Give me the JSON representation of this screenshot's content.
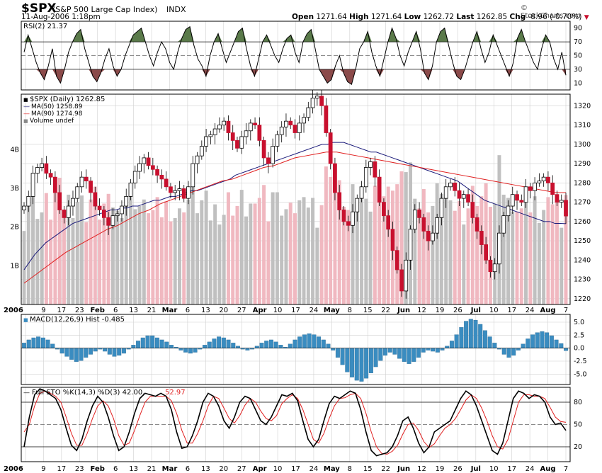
{
  "header": {
    "symbol": "$SPX",
    "name": "(S&P 500 Large Cap Index)",
    "exchange": "INDX",
    "date": "11-Aug-2006 1:18pm",
    "credit": "© StockCharts.com",
    "open_label": "Open",
    "open": "1271.64",
    "high_label": "High",
    "high": "1271.64",
    "low_label": "Low",
    "low": "1262.72",
    "last_label": "Last",
    "last": "1262.85",
    "chg_label": "Chg",
    "chg": "-8.96 (-0.70%)",
    "chg_arrow": "▼"
  },
  "colors": {
    "up": "#000000",
    "down": "#c8102e",
    "ma50": "#1a1a7a",
    "ma90": "#e02020",
    "rsi_high": "#5a7a4a",
    "rsi_low": "#8b4a4a",
    "macd_hist": "#3a8cc0",
    "vol_gray": "#c0c0c0",
    "vol_pink": "#f0b8c0",
    "grid": "#d0d0d0"
  },
  "chart_data": [
    {
      "type": "line",
      "name": "rsi",
      "title": "RSI(2) 21.37",
      "yticks": [
        10,
        30,
        50,
        70,
        90
      ],
      "ylim": [
        0,
        100
      ],
      "values": [
        55,
        80,
        60,
        40,
        25,
        15,
        35,
        60,
        20,
        10,
        30,
        55,
        70,
        82,
        88,
        60,
        40,
        20,
        12,
        25,
        45,
        60,
        35,
        20,
        30,
        50,
        65,
        80,
        85,
        90,
        70,
        50,
        35,
        55,
        70,
        60,
        40,
        30,
        55,
        75,
        88,
        92,
        65,
        45,
        35,
        20,
        50,
        70,
        82,
        60,
        40,
        55,
        70,
        85,
        90,
        60,
        35,
        20,
        45,
        70,
        80,
        65,
        50,
        40,
        60,
        75,
        80,
        55,
        40,
        70,
        82,
        88,
        60,
        30,
        20,
        10,
        15,
        35,
        50,
        25,
        12,
        8,
        30,
        60,
        70,
        85,
        55,
        35,
        20,
        45,
        70,
        90,
        75,
        50,
        35,
        55,
        70,
        85,
        60,
        25,
        15,
        35,
        70,
        85,
        90,
        65,
        40,
        20,
        15,
        30,
        50,
        70,
        85,
        60,
        40,
        55,
        80,
        65,
        50,
        35,
        20,
        40,
        75,
        88,
        70,
        55,
        40,
        30,
        60,
        80,
        70,
        45,
        30,
        55,
        21.37
      ]
    },
    {
      "type": "line",
      "name": "price",
      "title": "$SPX (Daily) 1262.85",
      "series_labels": [
        "MA(50) 1258.89",
        "MA(90) 1274.98",
        "Volume undef"
      ],
      "yticks": [
        1220,
        1230,
        1240,
        1250,
        1260,
        1270,
        1280,
        1290,
        1300,
        1310,
        1320
      ],
      "ylim": [
        1217,
        1326
      ],
      "volume_ticks": [
        "1B",
        "2B",
        "3B",
        "4B"
      ],
      "volume_lim": [
        0,
        5
      ],
      "xticks": [
        "2006",
        "9",
        "17",
        "23",
        "Feb",
        "6",
        "13",
        "21",
        "Mar",
        "6",
        "13",
        "20",
        "27",
        "Apr",
        "10",
        "17",
        "24",
        "May",
        "8",
        "15",
        "22",
        "Jun",
        "12",
        "19",
        "26",
        "Jul",
        "10",
        "17",
        "24",
        "Aug",
        "7"
      ],
      "close": [
        1268,
        1273,
        1285,
        1288,
        1290,
        1285,
        1283,
        1275,
        1266,
        1262,
        1268,
        1272,
        1278,
        1283,
        1281,
        1275,
        1268,
        1266,
        1262,
        1258,
        1263,
        1264,
        1268,
        1273,
        1280,
        1286,
        1290,
        1293,
        1289,
        1287,
        1284,
        1282,
        1278,
        1275,
        1276,
        1277,
        1272,
        1278,
        1290,
        1294,
        1299,
        1304,
        1305,
        1308,
        1310,
        1312,
        1306,
        1302,
        1298,
        1304,
        1307,
        1311,
        1310,
        1302,
        1293,
        1290,
        1299,
        1305,
        1309,
        1312,
        1310,
        1306,
        1311,
        1314,
        1319,
        1324,
        1325,
        1320,
        1306,
        1290,
        1275,
        1266,
        1260,
        1258,
        1265,
        1272,
        1278,
        1288,
        1291,
        1283,
        1270,
        1263,
        1256,
        1245,
        1235,
        1224,
        1240,
        1256,
        1266,
        1262,
        1255,
        1250,
        1254,
        1262,
        1272,
        1278,
        1280,
        1276,
        1272,
        1274,
        1270,
        1262,
        1255,
        1248,
        1240,
        1234,
        1238,
        1254,
        1263,
        1268,
        1274,
        1271,
        1270,
        1278,
        1276,
        1280,
        1281,
        1283,
        1280,
        1274,
        1270,
        1271,
        1262.85
      ],
      "ma50": [
        1235,
        1239,
        1243,
        1246,
        1249,
        1251,
        1253,
        1255,
        1257,
        1259,
        1260,
        1261,
        1262,
        1263,
        1264,
        1265,
        1266,
        1266,
        1267,
        1267,
        1268,
        1268,
        1269,
        1270,
        1271,
        1271,
        1272,
        1273,
        1273,
        1274,
        1275,
        1276,
        1276,
        1277,
        1278,
        1279,
        1280,
        1281,
        1282,
        1284,
        1285,
        1286,
        1287,
        1288,
        1289,
        1290,
        1291,
        1292,
        1293,
        1294,
        1295,
        1296,
        1297,
        1298,
        1299,
        1300,
        1300,
        1301,
        1301,
        1301,
        1300,
        1299,
        1298,
        1297,
        1296,
        1296,
        1295,
        1294,
        1293,
        1292,
        1291,
        1290,
        1289,
        1288,
        1287,
        1286,
        1285,
        1284,
        1283,
        1282,
        1281,
        1279,
        1277,
        1275,
        1273,
        1271,
        1270,
        1269,
        1268,
        1267,
        1266,
        1265,
        1264,
        1263,
        1262,
        1261,
        1260,
        1260,
        1259,
        1259,
        1258.89
      ],
      "ma90": [
        1228,
        1232,
        1236,
        1240,
        1244,
        1247,
        1250,
        1253,
        1256,
        1258,
        1261,
        1264,
        1266,
        1269,
        1271,
        1273,
        1275,
        1277,
        1279,
        1281,
        1282,
        1284,
        1286,
        1288,
        1289,
        1291,
        1293,
        1294,
        1295,
        1296,
        1296,
        1295,
        1294,
        1293,
        1292,
        1291,
        1290,
        1289,
        1288,
        1287,
        1286,
        1285,
        1284,
        1283,
        1282,
        1281,
        1280,
        1279,
        1278,
        1277,
        1276,
        1275,
        1274.98
      ]
    },
    {
      "type": "bar",
      "name": "macd",
      "title": "MACD(12,26,9) Hist -0.485",
      "yticks": [
        -5.0,
        -2.5,
        0.0,
        2.5,
        5.0
      ],
      "ylim": [
        -7,
        6.5
      ],
      "values": [
        1.0,
        1.6,
        2.0,
        2.2,
        2.0,
        1.6,
        0.8,
        -0.2,
        -1.0,
        -1.6,
        -2.2,
        -2.6,
        -2.4,
        -1.8,
        -1.2,
        -0.6,
        -0.2,
        -0.6,
        -1.2,
        -1.6,
        -1.4,
        -1.0,
        -0.2,
        0.6,
        1.4,
        2.0,
        2.4,
        2.4,
        2.0,
        1.6,
        1.2,
        0.6,
        0.2,
        -0.4,
        -0.8,
        -1.0,
        -0.8,
        -0.2,
        0.6,
        1.2,
        1.8,
        2.2,
        2.0,
        1.6,
        1.0,
        0.4,
        -0.2,
        -0.4,
        -0.2,
        0.4,
        1.0,
        1.4,
        1.6,
        1.2,
        0.6,
        0.2,
        0.8,
        1.6,
        2.2,
        2.6,
        2.8,
        2.6,
        2.2,
        1.6,
        0.8,
        -0.4,
        -1.8,
        -3.2,
        -4.6,
        -5.6,
        -6.2,
        -6.4,
        -5.8,
        -4.8,
        -3.6,
        -2.4,
        -1.4,
        -0.8,
        -1.2,
        -2.0,
        -2.6,
        -3.0,
        -2.6,
        -1.8,
        -0.8,
        -0.4,
        -0.6,
        -0.8,
        -0.4,
        0.4,
        1.4,
        2.6,
        4.0,
        5.2,
        5.6,
        5.4,
        4.6,
        3.4,
        2.2,
        1.0,
        -0.2,
        -1.2,
        -1.8,
        -1.4,
        -0.4,
        0.8,
        1.8,
        2.6,
        3.0,
        3.2,
        3.0,
        2.4,
        1.6,
        0.9,
        -0.485
      ]
    },
    {
      "type": "line",
      "name": "stochastic",
      "title": "Full STO %K(14,3) %D(3) 42.00,",
      "title_value2": "52.97",
      "yticks": [
        20,
        50,
        80
      ],
      "ylim": [
        0,
        100
      ],
      "k": [
        20,
        60,
        90,
        98,
        95,
        90,
        85,
        70,
        45,
        22,
        15,
        30,
        55,
        75,
        88,
        80,
        60,
        35,
        15,
        20,
        40,
        65,
        85,
        92,
        90,
        88,
        92,
        88,
        70,
        40,
        18,
        20,
        35,
        55,
        80,
        92,
        88,
        75,
        55,
        45,
        60,
        80,
        88,
        85,
        70,
        55,
        50,
        60,
        75,
        90,
        88,
        92,
        82,
        55,
        30,
        20,
        30,
        55,
        78,
        88,
        85,
        90,
        95,
        92,
        70,
        40,
        15,
        8,
        10,
        12,
        20,
        35,
        55,
        60,
        45,
        25,
        12,
        20,
        40,
        45,
        50,
        55,
        70,
        85,
        95,
        90,
        75,
        55,
        35,
        15,
        10,
        25,
        55,
        85,
        95,
        92,
        85,
        90,
        88,
        80,
        60,
        50,
        52,
        42.0
      ],
      "d": [
        40,
        50,
        75,
        92,
        95,
        92,
        88,
        80,
        60,
        38,
        22,
        22,
        38,
        58,
        75,
        82,
        75,
        58,
        35,
        22,
        25,
        42,
        62,
        80,
        88,
        88,
        88,
        88,
        82,
        65,
        42,
        25,
        25,
        38,
        55,
        75,
        88,
        85,
        72,
        58,
        52,
        62,
        76,
        85,
        80,
        68,
        58,
        55,
        62,
        78,
        85,
        90,
        85,
        70,
        50,
        30,
        25,
        38,
        58,
        75,
        85,
        86,
        90,
        92,
        85,
        65,
        40,
        20,
        11,
        10,
        14,
        22,
        37,
        50,
        52,
        42,
        27,
        19,
        24,
        35,
        45,
        50,
        58,
        70,
        83,
        90,
        85,
        72,
        55,
        35,
        20,
        17,
        30,
        55,
        80,
        90,
        90,
        88,
        88,
        85,
        73,
        60,
        54,
        52.97
      ]
    }
  ]
}
